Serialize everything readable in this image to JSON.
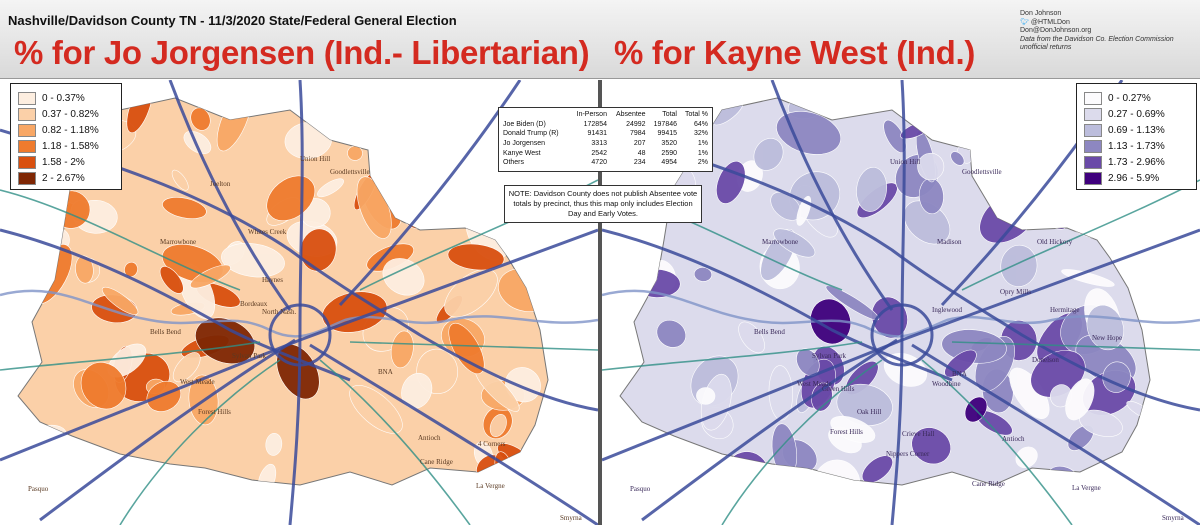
{
  "header": {
    "super_title": "Nashville/Davidson County TN - 11/3/2020 State/Federal General Election",
    "left_title": "% for Jo Jorgensen (Ind.- Libertarian)",
    "right_title": "% for Kayne West (Ind.)",
    "credit": {
      "name": "Don Johnson",
      "twitter": "@HTMLDon",
      "email": "Don@DonJohnson.org",
      "source": "Data from the Davidson Co. Election Commission",
      "status": "unofficial returns"
    }
  },
  "left_legend": [
    {
      "label": "0 - 0.37%",
      "color": "#fdeee0"
    },
    {
      "label": "0.37 - 0.82%",
      "color": "#fbd0a8"
    },
    {
      "label": "0.82 - 1.18%",
      "color": "#f8a765"
    },
    {
      "label": "1.18 - 1.58%",
      "color": "#ef7b2e"
    },
    {
      "label": "1.58 - 2%",
      "color": "#d9500f"
    },
    {
      "label": "2 - 2.67%",
      "color": "#7f2704"
    }
  ],
  "right_legend": [
    {
      "label": "0 - 0.27%",
      "color": "#fcfbfd"
    },
    {
      "label": "0.27 - 0.69%",
      "color": "#dcdbec"
    },
    {
      "label": "0.69 - 1.13%",
      "color": "#bcbddc"
    },
    {
      "label": "1.13 - 1.73%",
      "color": "#8d87c1"
    },
    {
      "label": "1.73 - 2.96%",
      "color": "#6a4aa8"
    },
    {
      "label": "2.96 - 5.9%",
      "color": "#3f007d"
    }
  ],
  "results": {
    "headers": [
      "",
      "In-Person",
      "Absentee",
      "Total",
      "Total %"
    ],
    "rows": [
      {
        "name": "Joe Biden (D)",
        "in_person": "172854",
        "absentee": "24992",
        "total": "197846",
        "pct": "64%"
      },
      {
        "name": "Donald Trump (R)",
        "in_person": "91431",
        "absentee": "7984",
        "total": "99415",
        "pct": "32%"
      },
      {
        "name": "Jo Jorgensen",
        "in_person": "3313",
        "absentee": "207",
        "total": "3520",
        "pct": "1%"
      },
      {
        "name": "Kanye West",
        "in_person": "2542",
        "absentee": "48",
        "total": "2590",
        "pct": "1%"
      },
      {
        "name": "Others",
        "in_person": "4720",
        "absentee": "234",
        "total": "4954",
        "pct": "2%"
      }
    ]
  },
  "note": "NOTE: Davidson County does not publish Absentee vote totals by precinct, thus this map only includes Election Day and Early Votes.",
  "left_places": [
    "Joelton",
    "Union Hill",
    "Marrowbone",
    "Whites Creek",
    "Bells Bend",
    "Haynes",
    "Bordeaux",
    "North Nash.",
    "Goodlettsville",
    "Sylvan Park",
    "West Meade",
    "Forest Hills",
    "BNA",
    "Antioch",
    "Cane Ridge",
    "4 Corners",
    "La Vergne",
    "Pasquo",
    "Smyrna"
  ],
  "right_places": [
    "Union Hill",
    "Goodlettsville",
    "Marrowbone",
    "Madison",
    "Old Hickory",
    "Inglewood",
    "Opry Mills",
    "Hermitage",
    "Bells Bend",
    "Donelson",
    "New Hope",
    "Sylvan Park",
    "BNA",
    "West Meade",
    "Green Hills",
    "Woodbine",
    "Oak Hill",
    "Forest Hills",
    "Crieve Hall",
    "Nippers Corner",
    "Antioch",
    "Cane Ridge",
    "La Vergne",
    "Pasquo",
    "Smyrna"
  ]
}
